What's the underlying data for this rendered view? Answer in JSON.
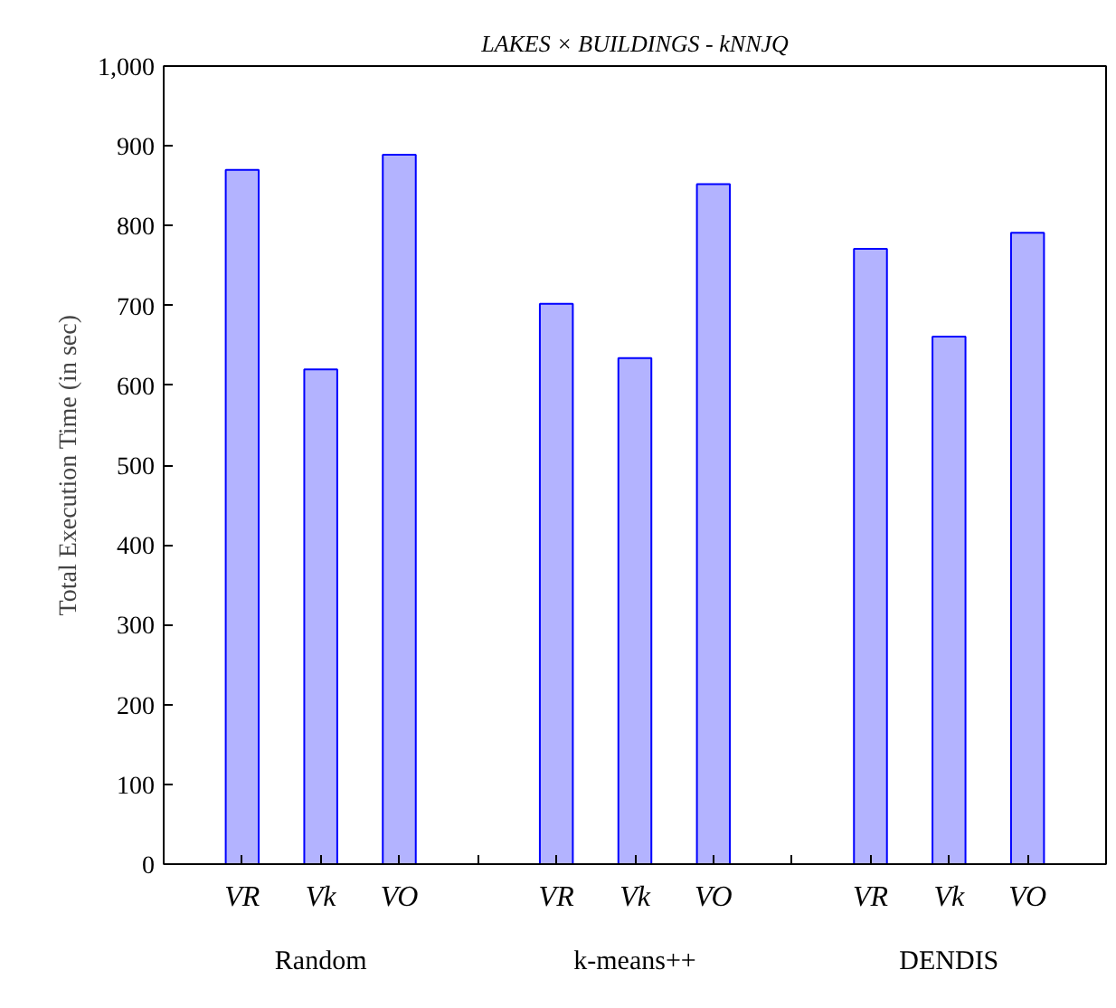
{
  "chart_data": {
    "type": "bar",
    "title": "LAKES × BUILDINGS - kNNJQ",
    "ylabel": "Total Execution Time (in sec)",
    "categories": [
      "Random",
      "k-means++",
      "DENDIS"
    ],
    "series": [
      {
        "name": "VR",
        "color": "#b3b3ff",
        "values": [
          870,
          702,
          771
        ]
      },
      {
        "name": "Vk",
        "color": "#b3b3ff",
        "values": [
          620,
          634,
          661
        ]
      },
      {
        "name": "VO",
        "color": "#b3b3ff",
        "values": [
          889,
          852,
          791
        ]
      }
    ],
    "ylim": [
      0,
      1000
    ],
    "yticks": [
      0,
      100,
      200,
      300,
      400,
      500,
      600,
      700,
      800,
      900,
      {
        "value": 1000,
        "label": "1,000"
      }
    ],
    "grid": false
  }
}
